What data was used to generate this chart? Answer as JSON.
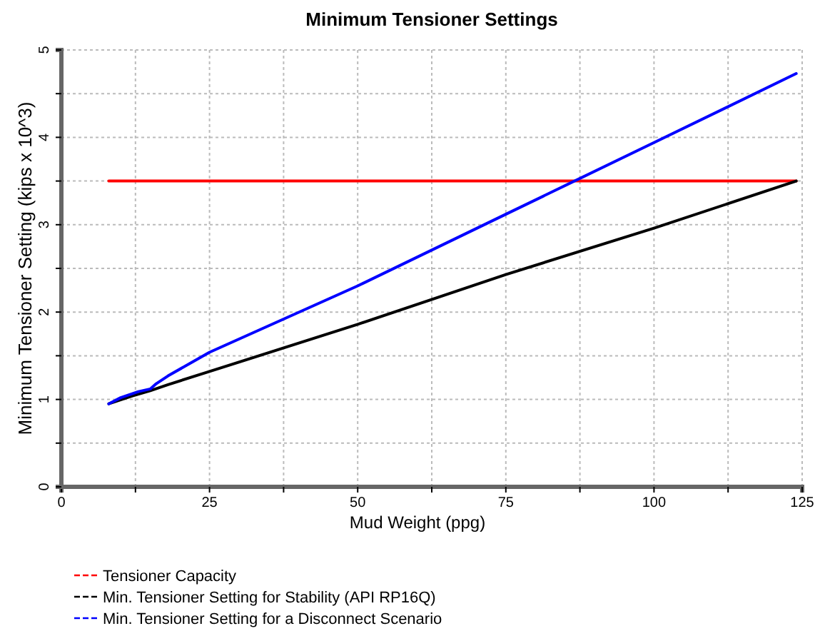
{
  "chart_data": {
    "type": "line",
    "title": "Minimum Tensioner Settings",
    "xlabel": "Mud Weight (ppg)",
    "ylabel": "Minimum Tensioner Setting  (kips x 10^3)",
    "xlim": [
      0,
      125
    ],
    "ylim": [
      0,
      5
    ],
    "xticks": [
      0,
      {
        "value": 12.5,
        "label": null
      },
      25,
      {
        "value": 37.5,
        "label": null
      },
      50,
      {
        "value": 62.5,
        "label": null
      },
      75,
      {
        "value": 87.5,
        "label": null
      },
      100,
      {
        "value": 112.5,
        "label": null
      },
      125
    ],
    "yticks": [
      0,
      {
        "value": 0.5,
        "label": null
      },
      1,
      {
        "value": 1.5,
        "label": null
      },
      2,
      {
        "value": 2.5,
        "label": null
      },
      3,
      {
        "value": 3.5,
        "label": null
      },
      4,
      {
        "value": 4.5,
        "label": null
      },
      5
    ],
    "grid": true,
    "legend": "bottom",
    "line_style": "solid",
    "marker": "none",
    "series": [
      {
        "name": "Tensioner Capacity",
        "color": "#ff0000",
        "x": [
          8,
          124
        ],
        "values": [
          3.5,
          3.5
        ]
      },
      {
        "name": "Min. Tensioner Setting for Stability (API RP16Q)",
        "color": "#000000",
        "x": [
          8,
          12,
          15,
          18,
          25,
          50,
          75,
          100,
          124
        ],
        "values": [
          0.95,
          1.04,
          1.1,
          1.17,
          1.32,
          1.86,
          2.43,
          2.96,
          3.5
        ]
      },
      {
        "name": "Min. Tensioner Setting for a Disconnect Scenario",
        "color": "#0000ff",
        "x": [
          8,
          10,
          13,
          15,
          16,
          18,
          25,
          50,
          75,
          100,
          124
        ],
        "values": [
          0.95,
          1.02,
          1.09,
          1.12,
          1.18,
          1.27,
          1.54,
          2.3,
          3.12,
          3.94,
          4.73
        ]
      }
    ]
  }
}
